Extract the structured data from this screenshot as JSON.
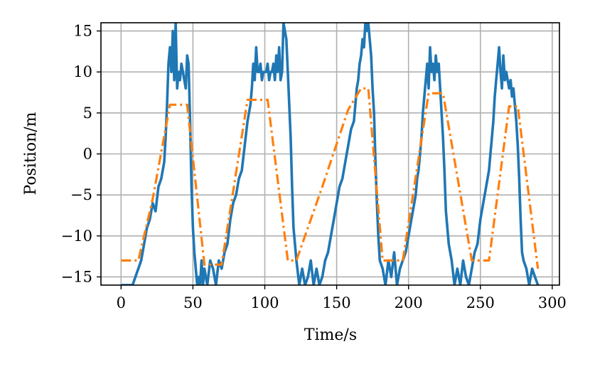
{
  "chart_data": {
    "type": "line",
    "xlabel": "Time/s",
    "ylabel": "Position/m",
    "xlim": [
      -14,
      305
    ],
    "ylim": [
      -16,
      16
    ],
    "xticks": [
      0,
      50,
      100,
      150,
      200,
      250,
      300
    ],
    "yticks": [
      -15,
      -10,
      -5,
      0,
      5,
      10,
      15
    ],
    "xtick_labels": [
      "0",
      "50",
      "100",
      "150",
      "200",
      "250",
      "300"
    ],
    "ytick_labels": [
      "−15",
      "−10",
      "−5",
      "0",
      "5",
      "10",
      "15"
    ],
    "grid": true,
    "legend": "none",
    "series": [
      {
        "color": "#1f77b4",
        "style": "solid",
        "x": [
          0,
          4,
          8,
          10,
          12,
          14,
          16,
          18,
          20,
          22,
          24,
          26,
          28,
          30,
          31,
          32,
          33,
          34,
          35,
          36,
          37,
          38,
          39,
          40,
          41,
          42,
          43,
          44,
          45,
          46,
          47,
          48,
          49,
          50,
          51,
          52,
          53,
          54,
          55,
          56,
          57,
          58,
          60,
          62,
          64,
          66,
          68,
          70,
          72,
          74,
          76,
          78,
          80,
          82,
          84,
          86,
          88,
          90,
          91,
          92,
          93,
          94,
          95,
          96,
          97,
          98,
          99,
          100,
          101,
          102,
          103,
          104,
          105,
          106,
          107,
          108,
          109,
          110,
          111,
          112,
          113,
          114,
          115,
          116,
          117,
          118,
          119,
          120,
          122,
          124,
          126,
          128,
          130,
          132,
          134,
          136,
          138,
          140,
          142,
          144,
          146,
          148,
          150,
          152,
          154,
          156,
          158,
          160,
          162,
          163,
          164,
          165,
          166,
          167,
          168,
          169,
          170,
          171,
          172,
          173,
          174,
          175,
          176,
          177,
          178,
          179,
          180,
          182,
          184,
          186,
          188,
          190,
          192,
          194,
          196,
          198,
          200,
          202,
          204,
          205,
          206,
          207,
          208,
          209,
          210,
          211,
          212,
          213,
          214,
          215,
          216,
          217,
          218,
          219,
          220,
          221,
          222,
          223,
          224,
          225,
          226,
          228,
          230,
          232,
          234,
          236,
          238,
          240,
          242,
          244,
          246,
          248,
          250,
          252,
          254,
          256,
          257,
          258,
          259,
          260,
          261,
          262,
          263,
          264,
          265,
          266,
          267,
          268,
          269,
          270,
          271,
          272,
          273,
          274,
          275,
          276,
          277,
          278,
          279,
          280,
          282,
          284,
          286,
          288,
          290
        ],
        "y": [
          -16,
          -16,
          -16,
          -15,
          -14,
          -13,
          -11,
          -9,
          -8,
          -6,
          -7,
          -4,
          -3,
          -1,
          2,
          6,
          11,
          13,
          10,
          15,
          9,
          16,
          8,
          10,
          9,
          11,
          10,
          9,
          8,
          12,
          11,
          4,
          -4,
          -9,
          -12,
          -14,
          -16,
          -15,
          -16,
          -13,
          -16,
          -14,
          -16,
          -13,
          -14,
          -16,
          -13,
          -14,
          -12,
          -11,
          -8,
          -6,
          -5,
          -3,
          -2,
          1,
          4,
          6,
          8,
          11,
          9,
          13,
          10,
          10,
          11,
          9,
          10,
          10,
          10,
          11,
          9,
          10,
          10,
          11,
          9,
          12,
          10,
          13,
          9,
          10,
          16,
          15,
          14,
          10,
          6,
          2,
          -4,
          -9,
          -13,
          -16,
          -14,
          -16,
          -15,
          -13,
          -16,
          -14,
          -16,
          -15,
          -13,
          -12,
          -10,
          -8,
          -6,
          -4,
          -3,
          -1,
          1,
          3,
          4,
          6,
          8,
          9,
          11,
          12,
          14,
          13,
          16,
          15,
          16,
          14,
          12,
          8,
          5,
          -1,
          -6,
          -10,
          -13,
          -14,
          -16,
          -13,
          -15,
          -12,
          -16,
          -14,
          -13,
          -12,
          -10,
          -8,
          -6,
          -5,
          -3,
          -2,
          0,
          2,
          5,
          7,
          9,
          11,
          8,
          13,
          10,
          11,
          9,
          12,
          10,
          11,
          8,
          5,
          2,
          -2,
          -7,
          -11,
          -13,
          -16,
          -14,
          -16,
          -13,
          -15,
          -16,
          -14,
          -12,
          -11,
          -8,
          -6,
          -4,
          -2,
          0,
          2,
          4,
          7,
          9,
          11,
          13,
          10,
          8,
          12,
          9,
          10,
          9,
          8,
          9,
          7,
          8,
          6,
          4,
          1,
          -3,
          -8,
          -12,
          -13,
          -14,
          -16,
          -14,
          -15,
          -16
        ]
      },
      {
        "color": "#ff7f0e",
        "style": "dashdot",
        "x": [
          0,
          12,
          22,
          34,
          46,
          58,
          70,
          88,
          102,
          116,
          122,
          140,
          158,
          167,
          172,
          182,
          196,
          214,
          224,
          244,
          256,
          270,
          276,
          290
        ],
        "y": [
          -13,
          -13,
          -5.5,
          6,
          6,
          -13.5,
          -13.5,
          6.6,
          6.6,
          -13,
          -13,
          -4,
          5.4,
          8,
          8,
          -13,
          -13,
          7.4,
          7.4,
          -13,
          -13,
          5.8,
          5.8,
          -14
        ]
      }
    ]
  }
}
